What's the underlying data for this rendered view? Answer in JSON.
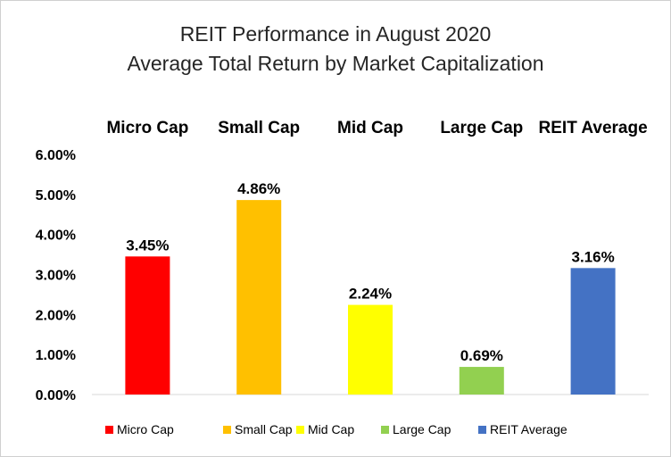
{
  "chart_data": {
    "type": "bar",
    "title": "REIT Performance  in August 2020",
    "subtitle": "Average Total Return by Market Capitalization",
    "categories": [
      "Micro Cap",
      "Small Cap",
      "Mid Cap",
      "Large Cap",
      "REIT Average"
    ],
    "values": [
      3.45,
      4.86,
      2.24,
      0.69,
      3.16
    ],
    "data_labels": [
      "3.45%",
      "4.86%",
      "2.24%",
      "0.69%",
      "3.16%"
    ],
    "colors": [
      "#ff0000",
      "#ffc000",
      "#ffff00",
      "#92d050",
      "#4472c4"
    ],
    "ylim": [
      0,
      6
    ],
    "yticks": [
      0,
      1,
      2,
      3,
      4,
      5,
      6
    ],
    "ytick_labels": [
      "0.00%",
      "1.00%",
      "2.00%",
      "3.00%",
      "4.00%",
      "5.00%",
      "6.00%"
    ],
    "category_labels_position": "top",
    "grid": false,
    "legend": {
      "position": "bottom",
      "entries": [
        "Micro Cap",
        "Small Cap",
        "Mid Cap",
        "Large Cap",
        "REIT Average"
      ]
    }
  }
}
